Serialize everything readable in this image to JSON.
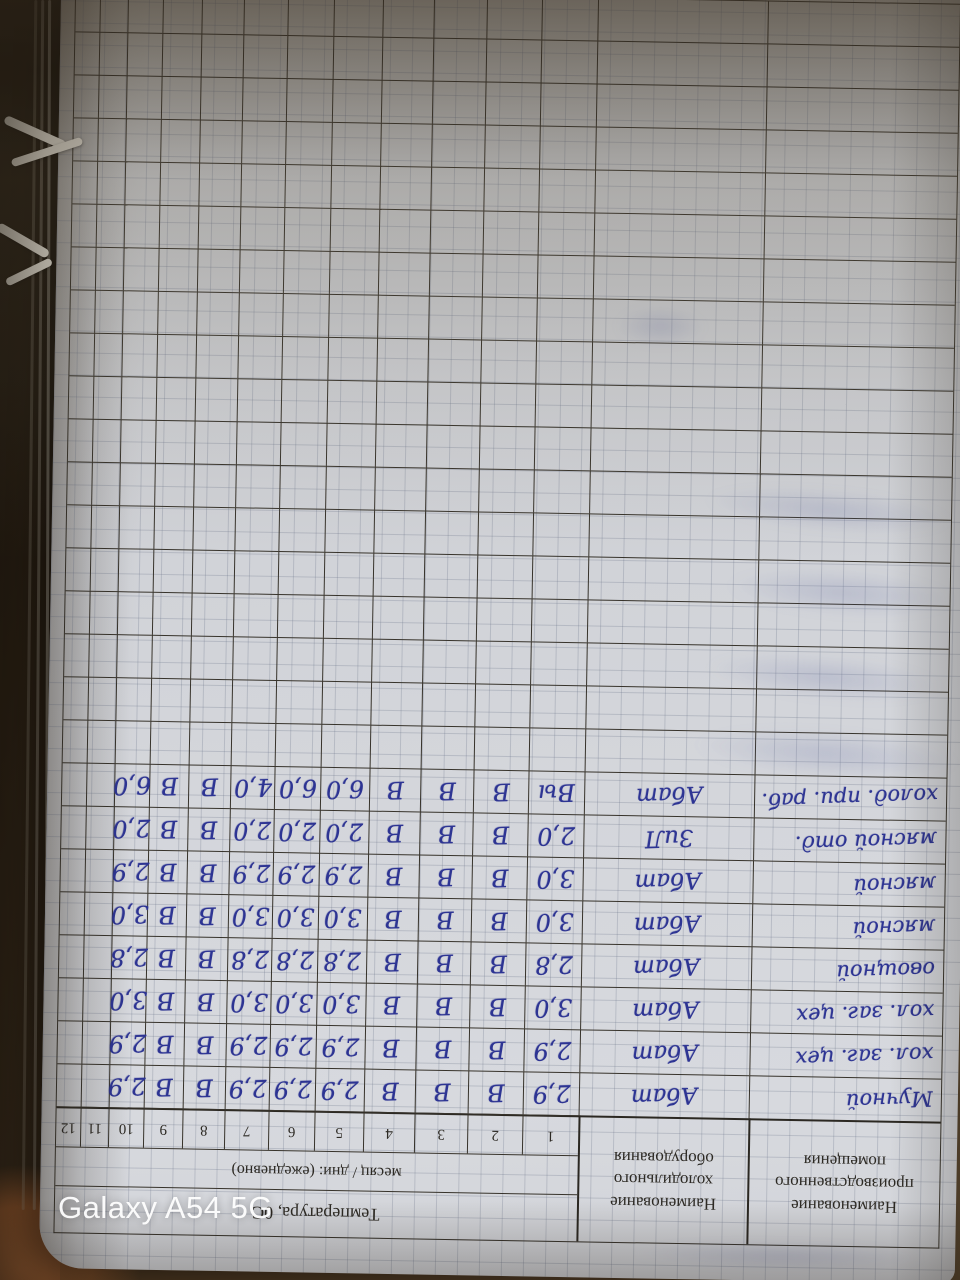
{
  "device_watermark": "Galaxy A54 5G",
  "colors": {
    "handwriting_ink": "#2d3493",
    "paper": "#d4d6db",
    "table_line": "#37332b",
    "background_wood": "#9a5a2d"
  },
  "table": {
    "headers": {
      "room": "Наименование производственного помещения",
      "equipment": "Наименование холодильного оборудования",
      "temperature": "Температура, 0С",
      "period": "месяц / дни: (ежедневно)",
      "day_numbers": [
        "1",
        "2",
        "3",
        "4",
        "5",
        "6",
        "7",
        "8",
        "9",
        "10",
        "11",
        "12"
      ]
    },
    "rows": [
      {
        "room": "Мучной",
        "equipment": "Абат",
        "values": [
          "2,9",
          "В",
          "В",
          "В",
          "2,9",
          "2,9",
          "2,9",
          "В",
          "В",
          "2,9",
          "",
          ""
        ]
      },
      {
        "room": "хол. заг. цех",
        "equipment": "Абат",
        "values": [
          "2,9",
          "В",
          "В",
          "В",
          "2,9",
          "2,9",
          "2,9",
          "В",
          "В",
          "2,9",
          "",
          ""
        ]
      },
      {
        "room": "хол. заг. цех",
        "equipment": "Абат",
        "values": [
          "3,0",
          "В",
          "В",
          "В",
          "3,0",
          "3,0",
          "3,0",
          "В",
          "В",
          "3,0",
          "",
          ""
        ]
      },
      {
        "room": "овощной",
        "equipment": "Абат",
        "values": [
          "2,8",
          "В",
          "В",
          "В",
          "2,8",
          "2,8",
          "2,8",
          "В",
          "В",
          "2,8",
          "",
          ""
        ]
      },
      {
        "room": "мясной",
        "equipment": "Абат",
        "values": [
          "3,0",
          "В",
          "В",
          "В",
          "3,0",
          "3,0",
          "3,0",
          "В",
          "В",
          "3,0",
          "",
          ""
        ]
      },
      {
        "room": "мясной",
        "equipment": "Абат",
        "values": [
          "3,0",
          "В",
          "В",
          "В",
          "2,9",
          "2,9",
          "2,9",
          "В",
          "В",
          "2,9",
          "",
          ""
        ]
      },
      {
        "room": "мясной отд.",
        "equipment": "ЗиЛ",
        "values": [
          "2,0",
          "В",
          "В",
          "В",
          "2,0",
          "2,0",
          "2,0",
          "В",
          "В",
          "2,0",
          "",
          ""
        ]
      },
      {
        "room": "холод. при. раб.",
        "equipment": "Абат",
        "values": [
          "Вы",
          "В",
          "В",
          "В",
          "6,0",
          "6,0",
          "4,0",
          "В",
          "В",
          "6,0",
          "",
          ""
        ]
      }
    ],
    "empty_row_count": 18
  }
}
